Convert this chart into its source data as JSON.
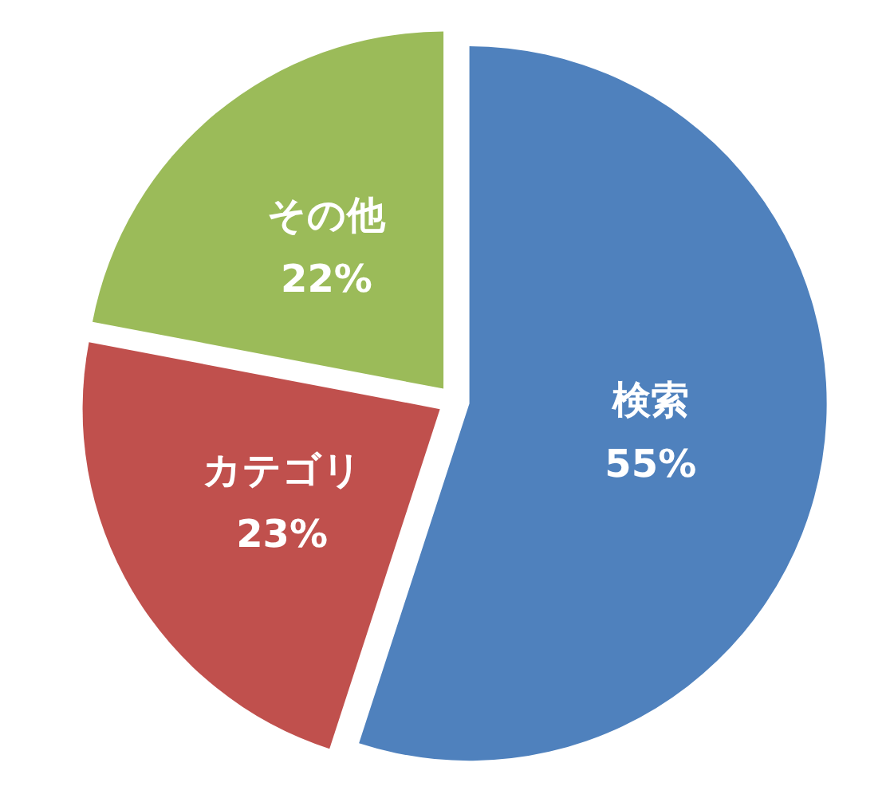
{
  "chart_data": {
    "type": "pie",
    "categories": [
      "検索",
      "カテゴリ",
      "その他"
    ],
    "values": [
      55,
      23,
      22
    ],
    "colors": [
      "#4f81bd",
      "#c0504d",
      "#9bbb59"
    ],
    "value_labels": [
      "55%",
      "23%",
      "22%"
    ],
    "legend": false
  }
}
